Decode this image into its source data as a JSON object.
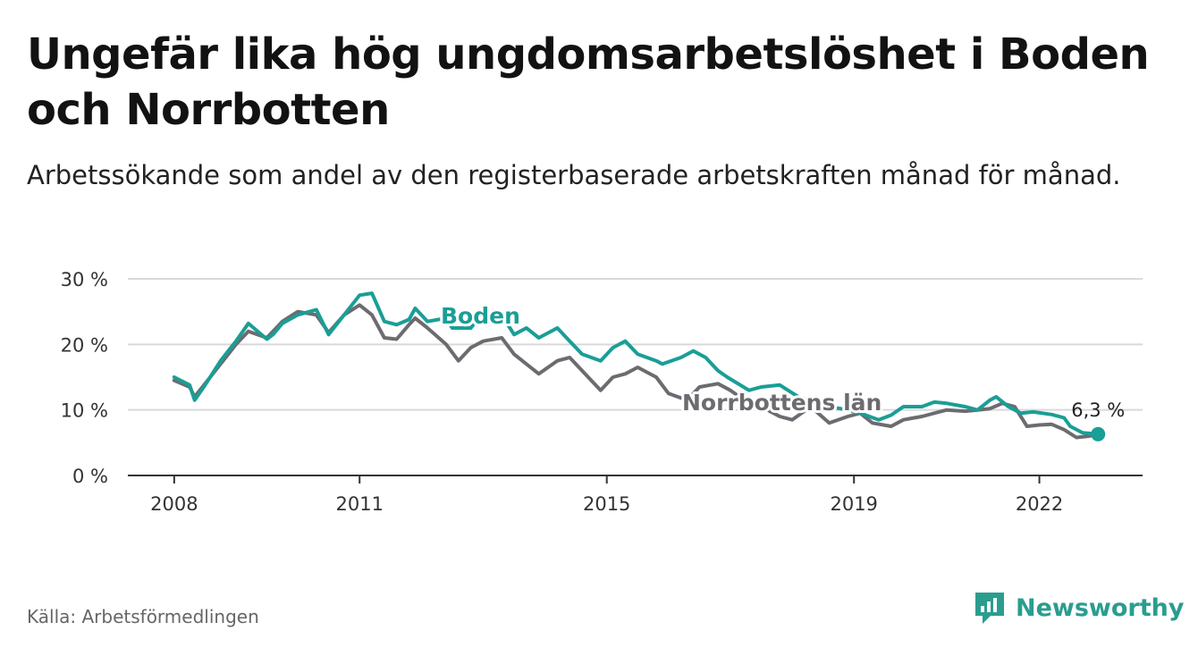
{
  "title": "Ungefär lika hög ungdomsarbetslöshet i Boden och Norrbotten",
  "subtitle": "Arbetssökande som andel av den registerbaserade arbetskraften månad för månad.",
  "source": "Källa: Arbetsförmedlingen",
  "brand": "Newsworthy",
  "colors": {
    "boden": "#1a9e96",
    "norrbotten": "#6d6b70",
    "grid": "#d9d9d9",
    "axis": "#333333"
  },
  "chart_data": {
    "type": "line",
    "title": "Ungefär lika hög ungdomsarbetslöshet i Boden och Norrbotten",
    "xlabel": "",
    "ylabel": "",
    "ylim": [
      0,
      30
    ],
    "xlim": [
      2007.25,
      2023.67
    ],
    "y_ticks": [
      0,
      10,
      20,
      30
    ],
    "y_tick_labels": [
      "0 %",
      "10 %",
      "20 %",
      "30 %"
    ],
    "x_ticks": [
      2008,
      2011,
      2015,
      2019,
      2022
    ],
    "x_tick_labels": [
      "2008",
      "2011",
      "2015",
      "2019",
      "2022"
    ],
    "end_value_label": "6,3 %",
    "series": [
      {
        "name": "Boden",
        "x": [
          2008.0,
          2008.25,
          2008.33,
          2008.5,
          2008.75,
          2009.0,
          2009.2,
          2009.5,
          2009.6,
          2009.75,
          2010.0,
          2010.3,
          2010.5,
          2010.75,
          2011.0,
          2011.2,
          2011.4,
          2011.6,
          2011.8,
          2011.9,
          2012.1,
          2012.4,
          2012.5,
          2012.8,
          2013.0,
          2013.3,
          2013.5,
          2013.7,
          2013.9,
          2014.2,
          2014.4,
          2014.6,
          2014.9,
          2015.1,
          2015.3,
          2015.5,
          2015.8,
          2015.9,
          2016.2,
          2016.4,
          2016.6,
          2016.8,
          2016.95,
          2017.3,
          2017.5,
          2017.8,
          2018.1,
          2018.4,
          2018.6,
          2018.9,
          2019.1,
          2019.4,
          2019.6,
          2019.8,
          2020.1,
          2020.3,
          2020.5,
          2020.8,
          2021.0,
          2021.2,
          2021.3,
          2021.5,
          2021.7,
          2021.9,
          2022.2,
          2022.4,
          2022.5,
          2022.7,
          2022.95
        ],
        "values": [
          15.0,
          13.8,
          11.5,
          13.8,
          17.5,
          20.5,
          23.2,
          20.8,
          21.5,
          23.2,
          24.5,
          25.3,
          21.5,
          24.5,
          27.5,
          27.8,
          23.5,
          23.0,
          23.8,
          25.5,
          23.5,
          24.0,
          22.5,
          22.5,
          25.0,
          24.5,
          21.5,
          22.5,
          21.0,
          22.5,
          20.5,
          18.5,
          17.5,
          19.5,
          20.5,
          18.5,
          17.5,
          17.0,
          18.0,
          19.0,
          18.0,
          16.0,
          15.0,
          13.0,
          13.5,
          13.8,
          12.0,
          11.0,
          10.5,
          10.0,
          9.5,
          8.5,
          9.2,
          10.5,
          10.5,
          11.2,
          11.0,
          10.5,
          10.0,
          11.5,
          12.0,
          10.5,
          9.5,
          9.7,
          9.3,
          8.8,
          7.5,
          6.5,
          6.3
        ]
      },
      {
        "name": "Norrbottens län",
        "x": [
          2008.0,
          2008.25,
          2008.33,
          2008.5,
          2008.75,
          2009.0,
          2009.2,
          2009.5,
          2009.75,
          2010.0,
          2010.3,
          2010.5,
          2010.75,
          2011.0,
          2011.2,
          2011.4,
          2011.6,
          2011.8,
          2011.9,
          2012.1,
          2012.4,
          2012.6,
          2012.8,
          2013.0,
          2013.3,
          2013.5,
          2013.7,
          2013.9,
          2014.2,
          2014.4,
          2014.6,
          2014.9,
          2015.1,
          2015.3,
          2015.5,
          2015.8,
          2016.0,
          2016.3,
          2016.5,
          2016.8,
          2017.0,
          2017.3,
          2017.6,
          2017.8,
          2018.0,
          2018.3,
          2018.6,
          2018.9,
          2019.1,
          2019.3,
          2019.6,
          2019.8,
          2020.1,
          2020.3,
          2020.5,
          2020.8,
          2021.0,
          2021.2,
          2021.4,
          2021.6,
          2021.8,
          2022.0,
          2022.2,
          2022.4,
          2022.6,
          2022.8,
          2022.95
        ],
        "values": [
          14.5,
          13.5,
          12.0,
          14.0,
          17.0,
          20.0,
          22.0,
          21.0,
          23.5,
          25.0,
          24.5,
          21.8,
          24.5,
          26.0,
          24.5,
          21.0,
          20.8,
          23.0,
          24.0,
          22.5,
          20.0,
          17.5,
          19.5,
          20.5,
          21.0,
          18.5,
          17.0,
          15.5,
          17.5,
          18.0,
          16.0,
          13.0,
          15.0,
          15.5,
          16.5,
          15.0,
          12.5,
          11.5,
          13.5,
          14.0,
          13.0,
          11.0,
          10.0,
          9.0,
          8.5,
          10.5,
          8.0,
          9.0,
          9.5,
          8.0,
          7.5,
          8.5,
          9.0,
          9.5,
          10.0,
          9.8,
          10.0,
          10.2,
          11.0,
          10.5,
          7.5,
          7.7,
          7.8,
          7.0,
          5.8,
          6.0,
          6.3
        ]
      }
    ]
  }
}
